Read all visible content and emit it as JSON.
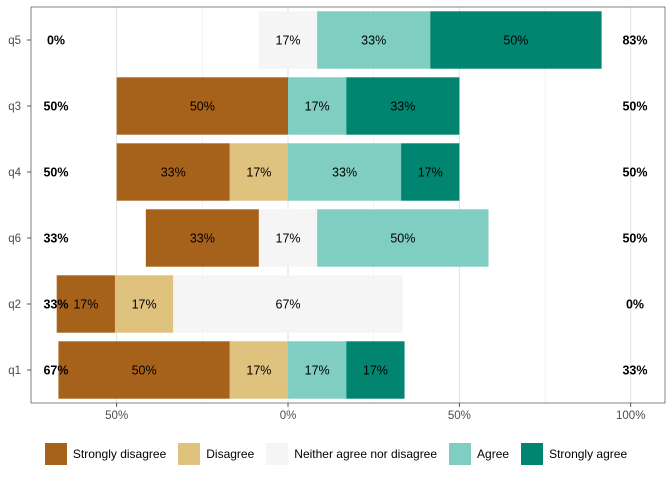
{
  "chart_data": {
    "type": "bar",
    "orientation": "horizontal-diverging",
    "categories": [
      "q5",
      "q3",
      "q4",
      "q6",
      "q2",
      "q1"
    ],
    "series": [
      {
        "name": "Strongly disagree",
        "color": "#A6611A",
        "values": [
          0,
          50,
          33,
          33,
          17,
          50
        ],
        "labels": [
          "",
          "50%",
          "33%",
          "33%",
          "17%",
          "50%"
        ]
      },
      {
        "name": "Disagree",
        "color": "#DFC27D",
        "values": [
          0,
          0,
          17,
          0,
          17,
          17
        ],
        "labels": [
          "",
          "",
          "17%",
          "",
          "17%",
          "17%"
        ]
      },
      {
        "name": "Neither agree nor disagree",
        "color": "#F5F5F5",
        "values": [
          17,
          0,
          0,
          17,
          67,
          0
        ],
        "labels": [
          "17%",
          "",
          "",
          "17%",
          "67%",
          ""
        ]
      },
      {
        "name": "Agree",
        "color": "#80CDC1",
        "values": [
          33,
          17,
          33,
          50,
          0,
          17
        ],
        "labels": [
          "33%",
          "17%",
          "33%",
          "50%",
          "",
          "17%"
        ]
      },
      {
        "name": "Strongly agree",
        "color": "#018571",
        "values": [
          50,
          33,
          17,
          0,
          0,
          17
        ],
        "labels": [
          "50%",
          "33%",
          "17%",
          "",
          "",
          "17%"
        ]
      }
    ],
    "left_totals": [
      "0%",
      "50%",
      "50%",
      "33%",
      "33%",
      "67%"
    ],
    "right_totals": [
      "83%",
      "50%",
      "50%",
      "50%",
      "0%",
      "33%"
    ],
    "x_ticks": [
      -50,
      0,
      50,
      100
    ],
    "x_tick_labels": [
      "50%",
      "0%",
      "50%",
      "100%"
    ],
    "xlim": [
      -75,
      110
    ],
    "grid": true,
    "legend_position": "bottom"
  }
}
